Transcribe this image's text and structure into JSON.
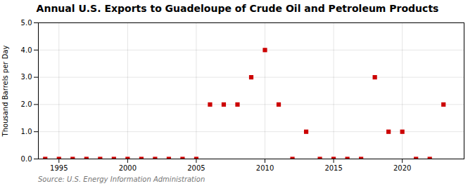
{
  "chart_data": {
    "type": "scatter",
    "title": "Annual U.S. Exports to Guadeloupe of Crude Oil and Petroleum Products",
    "ylabel": "Thousand Barrels per Day",
    "source": "Source: U.S. Energy Information Administration",
    "x": [
      1994,
      1995,
      1996,
      1997,
      1998,
      1999,
      2000,
      2001,
      2002,
      2003,
      2004,
      2005,
      2006,
      2007,
      2008,
      2009,
      2010,
      2011,
      2012,
      2013,
      2014,
      2015,
      2016,
      2017,
      2018,
      2019,
      2020,
      2021,
      2022,
      2023
    ],
    "values": [
      0.0,
      0.0,
      0.0,
      0.0,
      0.0,
      0.0,
      0.0,
      0.0,
      0.0,
      0.0,
      0.0,
      0.0,
      2.0,
      2.0,
      2.0,
      3.0,
      4.0,
      2.0,
      0.0,
      1.0,
      0.0,
      0.0,
      0.0,
      0.0,
      3.0,
      1.0,
      1.0,
      0.0,
      0.0,
      2.0
    ],
    "color": "#cc0000",
    "marker": "square",
    "xlim": [
      1993.5,
      2024.5
    ],
    "xticks": [
      1995,
      2000,
      2005,
      2010,
      2015,
      2020
    ],
    "ylim": [
      0.0,
      5.0
    ],
    "yticks": [
      {
        "value": 0,
        "label": "0.0"
      },
      {
        "value": 1,
        "label": "1.0"
      },
      {
        "value": 2,
        "label": "2.0"
      },
      {
        "value": 3,
        "label": "3.0"
      },
      {
        "value": 4,
        "label": "4.0"
      },
      {
        "value": 5,
        "label": "5.0"
      }
    ],
    "grid": true
  }
}
